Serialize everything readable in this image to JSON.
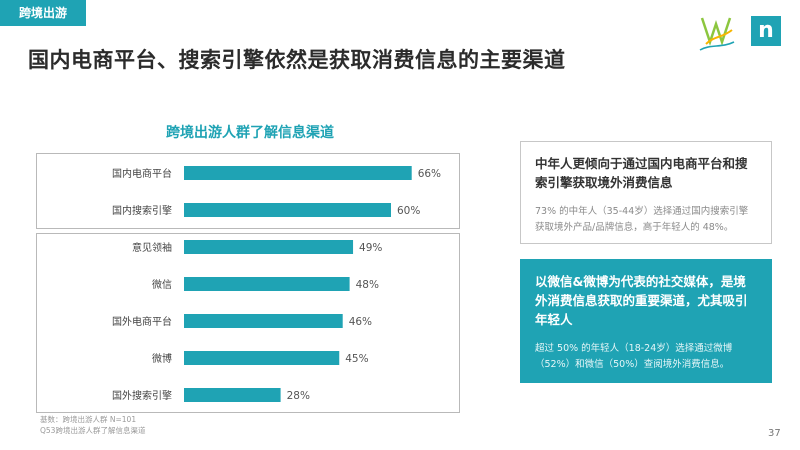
{
  "header": {
    "section_tag": "跨境出游",
    "page_title": "国内电商平台、搜索引擎依然是获取消费信息的主要渠道",
    "logo_n_text": "n",
    "accent_color": "#1fa3b4"
  },
  "chart_data": {
    "type": "bar",
    "orientation": "horizontal",
    "title": "跨境出游人群了解信息渠道",
    "categories": [
      "国内电商平台",
      "国内搜索引擎",
      "意见领袖",
      "微信",
      "国外电商平台",
      "微博",
      "国外搜索引擎"
    ],
    "values": [
      66,
      60,
      49,
      48,
      46,
      45,
      28
    ],
    "value_labels": [
      "66%",
      "60%",
      "49%",
      "48%",
      "46%",
      "45%",
      "28%"
    ],
    "groups": [
      [
        0,
        1
      ],
      [
        2,
        3,
        4,
        5,
        6
      ]
    ],
    "xlim": [
      0,
      100
    ],
    "bar_color": "#1fa3b4",
    "grid": false
  },
  "callouts": [
    {
      "head": "中年人更倾向于通过国内电商平台和搜索引擎获取境外消费信息",
      "body": "73% 的中年人（35-44岁）选择通过国内搜索引擎获取境外产品/品牌信息，高于年轻人的 48%。"
    },
    {
      "head": "以微信&微博为代表的社交媒体，是境外消费信息获取的重要渠道，尤其吸引年轻人",
      "body": "超过 50% 的年轻人（18-24岁）选择通过微博（52%）和微信（50%）查阅境外消费信息。"
    }
  ],
  "footnote": {
    "line1": "基数：跨境出游人群 N=101",
    "line2": "Q53跨境出游人群了解信息渠道"
  },
  "page_number": "37"
}
